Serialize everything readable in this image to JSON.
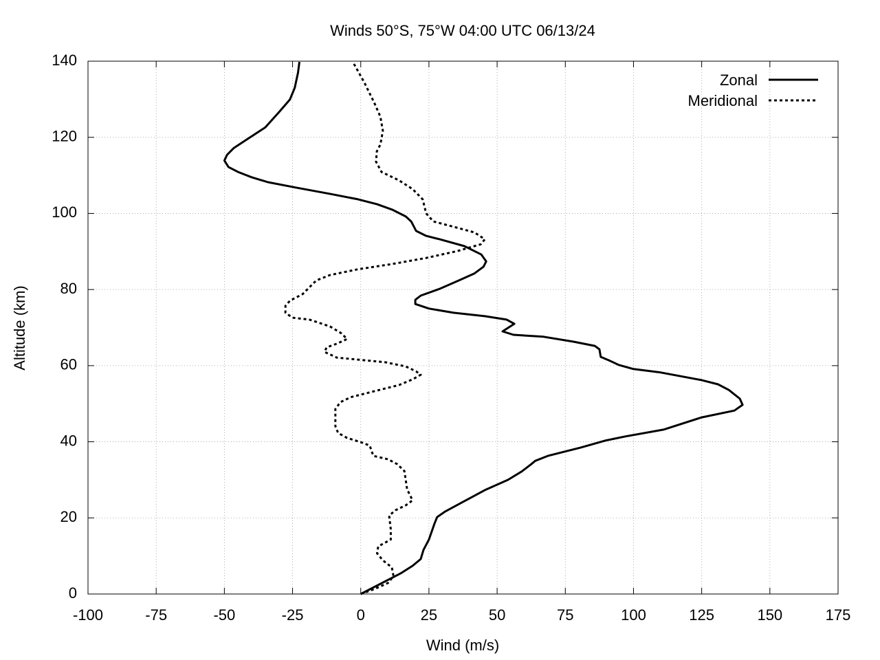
{
  "chart_data": {
    "type": "line",
    "title": "Winds 50°S, 75°W 04:00 UTC 06/13/24",
    "x_label": "Wind (m/s)",
    "y_label": "Altitude (km)",
    "xlim": [
      -100,
      175
    ],
    "xticks": [
      -100,
      -75,
      -50,
      -25,
      0,
      25,
      50,
      75,
      100,
      125,
      150,
      175
    ],
    "ylim": [
      0,
      140
    ],
    "yticks": [
      0,
      20,
      40,
      60,
      80,
      100,
      120,
      140
    ],
    "grid": true,
    "legend": "top-right",
    "series": [
      {
        "name": "Zonal",
        "color": "#000000",
        "line_style": "solid",
        "x": [
          0,
          14.6,
          19,
          22,
          23,
          25,
          27,
          28,
          31,
          37,
          45.5,
          54,
          59,
          62.5,
          64,
          68.6,
          80.7,
          89.6,
          97,
          111,
          125,
          137,
          140,
          139,
          135,
          131,
          125,
          110,
          100,
          94.6,
          91,
          88,
          87.5,
          85.8,
          78,
          67,
          56,
          52,
          56.3,
          53.5,
          45.5,
          34,
          25,
          20,
          20,
          22,
          29,
          36,
          41.6,
          45,
          46,
          44.2,
          38,
          29,
          24,
          20.3,
          18.5,
          16.5,
          11.5,
          6,
          -1,
          -11,
          -23.8,
          -34,
          -40,
          -45,
          -48.5,
          -50,
          -49,
          -46.5,
          -41.4,
          -35,
          -30,
          -26,
          -24.2,
          -23,
          -22.5
        ],
        "y": [
          0,
          5.4,
          7.4,
          9.2,
          11.6,
          14.3,
          18.4,
          20.2,
          21.7,
          24,
          27.3,
          30,
          32.2,
          34.1,
          35,
          36.3,
          38.5,
          40.3,
          41.4,
          43.2,
          46.4,
          48.2,
          49.7,
          51.3,
          53.6,
          55.1,
          56.2,
          58.2,
          59.1,
          60.2,
          61.4,
          62.3,
          64.3,
          65.2,
          66.3,
          67.6,
          68.1,
          69,
          71,
          72.1,
          73,
          73.9,
          75,
          76.2,
          77.3,
          78.4,
          80.2,
          82.4,
          84.2,
          86,
          87.4,
          89.2,
          91.4,
          93.2,
          94.1,
          95.4,
          97.9,
          99.2,
          101,
          102.4,
          103.7,
          105.1,
          106.8,
          108.2,
          109.5,
          110.9,
          112.2,
          113.9,
          115.4,
          117.2,
          119.6,
          122.6,
          126.6,
          129.9,
          133,
          137,
          139.8
        ]
      },
      {
        "name": "Meridional",
        "color": "#000000",
        "line_style": "dotted",
        "x": [
          0,
          5,
          10,
          12,
          11.4,
          8,
          6,
          6.4,
          11,
          11,
          10.4,
          12.7,
          16.5,
          19,
          17,
          16,
          13.4,
          10,
          4.6,
          3.3,
          0,
          -5,
          -8.3,
          -9.3,
          -9.3,
          -7.5,
          -3.7,
          3.9,
          14,
          19,
          22,
          20.3,
          16.5,
          9,
          -1.2,
          -8.7,
          -13.3,
          -12.5,
          -8.7,
          -5,
          -7.3,
          -11.3,
          -18.8,
          -25,
          -27.6,
          -27.6,
          -25.9,
          -21.3,
          -18.8,
          -16.3,
          -11.3,
          -1.2,
          11.4,
          24,
          35.4,
          44,
          45.5,
          41.7,
          34,
          26.6,
          24,
          22.7,
          19,
          14,
          7.6,
          5.6,
          5.9,
          7.2,
          8.1,
          7.2,
          5,
          1.3,
          -2.5
        ],
        "y": [
          0,
          1.3,
          2.9,
          4.7,
          7,
          8.9,
          10.7,
          12.5,
          14.3,
          17,
          20.6,
          22,
          23.3,
          24.6,
          27.5,
          32.3,
          34.1,
          35.4,
          36.3,
          39,
          39.9,
          41,
          42.3,
          44.1,
          48.6,
          50.4,
          51.7,
          53.1,
          54.9,
          56.4,
          57.6,
          58.5,
          59.8,
          60.9,
          61.6,
          62.1,
          63.6,
          64.8,
          65.8,
          67,
          68.6,
          70.3,
          72.1,
          72.6,
          73.9,
          75.7,
          77.1,
          78.8,
          80.6,
          82.4,
          83.8,
          85.3,
          86.7,
          88.3,
          90.1,
          91.9,
          93.2,
          95,
          96.5,
          97.9,
          100,
          103.7,
          106.4,
          108.7,
          110.9,
          113.6,
          116.3,
          118.1,
          121.7,
          125.4,
          129,
          134.4,
          139.3
        ]
      }
    ]
  }
}
